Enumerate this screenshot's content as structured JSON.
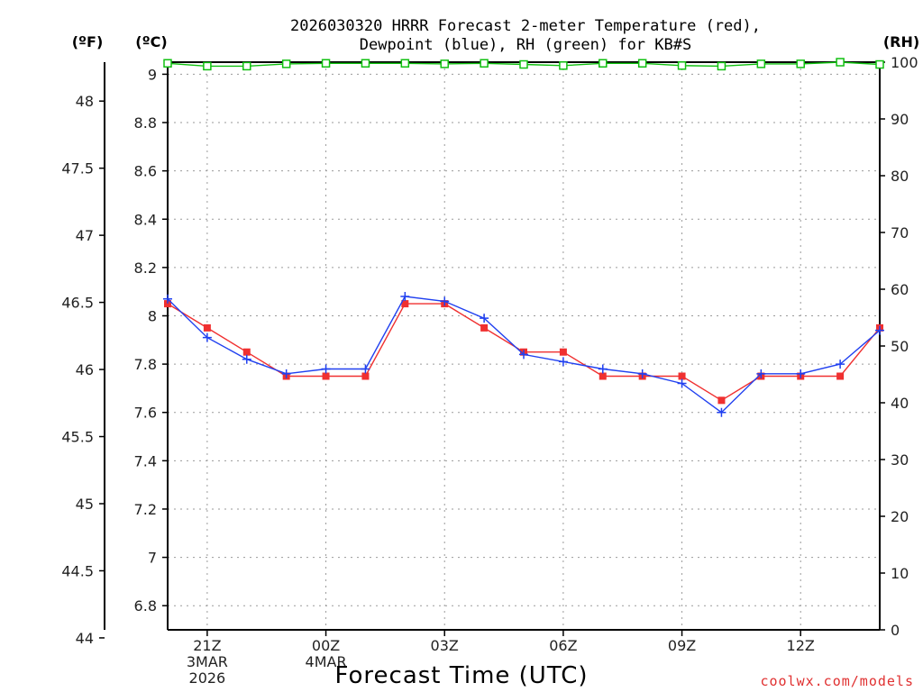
{
  "title_line1": "2026030320 HRRR Forecast 2-meter Temperature (red),",
  "title_line2": "Dewpoint (blue), RH (green) for KB#S",
  "unit_f": "(ºF)",
  "unit_c": "(ºC)",
  "unit_rh": "(RH)",
  "xlabel": "Forecast Time (UTC)",
  "credit": "coolwx.com/models",
  "colors": {
    "temperature": "#f03030",
    "dewpoint": "#2040f0",
    "rh": "#10c010"
  },
  "chart_data": {
    "type": "line",
    "title": "2026030320 HRRR Forecast 2-meter Temperature (red), Dewpoint (blue), RH (green) for KB#S",
    "x_hours_since_20Z_3MAR2026": [
      0,
      1,
      2,
      3,
      4,
      5,
      6,
      7,
      8,
      9,
      10,
      11,
      12,
      13,
      14,
      15,
      16,
      17,
      18
    ],
    "x_tick_labels": [
      {
        "hour": 1,
        "lines": [
          "21Z",
          "3MAR",
          "2026"
        ]
      },
      {
        "hour": 4,
        "lines": [
          "00Z",
          "4MAR"
        ]
      },
      {
        "hour": 7,
        "lines": [
          "03Z"
        ]
      },
      {
        "hour": 10,
        "lines": [
          "06Z"
        ]
      },
      {
        "hour": 13,
        "lines": [
          "09Z"
        ]
      },
      {
        "hour": 16,
        "lines": [
          "12Z"
        ]
      }
    ],
    "xlim": [
      0,
      18
    ],
    "ylim_c": [
      6.7,
      9.05
    ],
    "ylim_rh": [
      0,
      100
    ],
    "y_ticks_c": [
      6.8,
      7,
      7.2,
      7.4,
      7.6,
      7.8,
      8,
      8.2,
      8.4,
      8.6,
      8.8,
      9
    ],
    "y_ticks_f": [
      44,
      44.5,
      45,
      45.5,
      46,
      46.5,
      47,
      47.5,
      48
    ],
    "y_ticks_rh": [
      0,
      10,
      20,
      30,
      40,
      50,
      60,
      70,
      80,
      90,
      100
    ],
    "grid": true,
    "series": [
      {
        "name": "Temperature",
        "axis": "C",
        "marker": "square",
        "values": [
          8.05,
          7.95,
          7.85,
          7.75,
          7.75,
          7.75,
          8.05,
          8.05,
          7.95,
          7.85,
          7.85,
          7.75,
          7.75,
          7.75,
          7.65,
          7.75,
          7.75,
          7.75,
          7.95
        ]
      },
      {
        "name": "Dewpoint",
        "axis": "C",
        "marker": "plus",
        "values": [
          8.07,
          7.91,
          7.82,
          7.76,
          7.78,
          7.78,
          8.08,
          8.06,
          7.99,
          7.84,
          7.81,
          7.78,
          7.76,
          7.72,
          7.6,
          7.76,
          7.76,
          7.8,
          7.94
        ]
      },
      {
        "name": "RH",
        "axis": "RH",
        "marker": "square-open",
        "values": [
          99.8,
          99.3,
          99.3,
          99.7,
          99.8,
          99.8,
          99.8,
          99.7,
          99.8,
          99.6,
          99.4,
          99.8,
          99.8,
          99.4,
          99.3,
          99.7,
          99.7,
          100,
          99.6
        ]
      }
    ]
  }
}
